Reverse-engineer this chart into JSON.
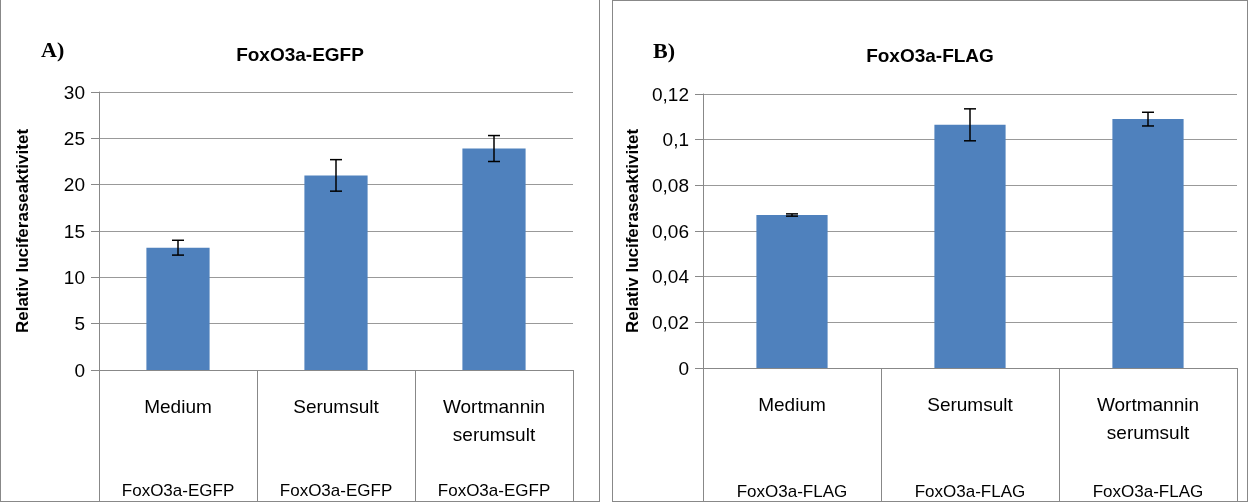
{
  "chart_data": [
    {
      "type": "bar",
      "title": "FoxO3a-EGFP",
      "ylabel": "Relativ luciferaseaktivitet",
      "categories": [
        "Medium",
        "Serumsult",
        "Wortmannin serumsult"
      ],
      "values": [
        13.2,
        21.0,
        23.9
      ],
      "color": "#4f81bd",
      "errors": [
        0.8,
        1.7,
        1.4
      ],
      "ylim": [
        0,
        30
      ],
      "yticks": [
        0,
        5,
        10,
        15,
        20,
        25,
        30
      ],
      "grid": "y",
      "annotations": [
        "A)",
        "FoxO3a-EGFP",
        "FoxO3a-EGFP",
        "FoxO3a-EGFP"
      ]
    },
    {
      "type": "bar",
      "title": "FoxO3a-FLAG",
      "ylabel": "Relativ luciferaseaktivitet",
      "categories": [
        "Medium",
        "Serumsult",
        "Wortmannin serumsult"
      ],
      "values": [
        0.067,
        0.1065,
        0.109
      ],
      "color": "#4f81bd",
      "errors": [
        0.0005,
        0.007,
        0.003
      ],
      "ylim": [
        0,
        0.12
      ],
      "yticks": [
        {
          "value": 0,
          "label": "0"
        },
        {
          "value": 0.02,
          "label": "0,02"
        },
        {
          "value": 0.04,
          "label": "0,04"
        },
        {
          "value": 0.06,
          "label": "0,06"
        },
        {
          "value": 0.08,
          "label": "0,08"
        },
        {
          "value": 0.1,
          "label": "0,1"
        },
        {
          "value": 0.12,
          "label": "0,12"
        }
      ],
      "grid": "y",
      "annotations": [
        "B)",
        "FoxO3a-FLAG",
        "FoxO3a-FLAG",
        "FoxO3a-FLAG"
      ]
    }
  ]
}
